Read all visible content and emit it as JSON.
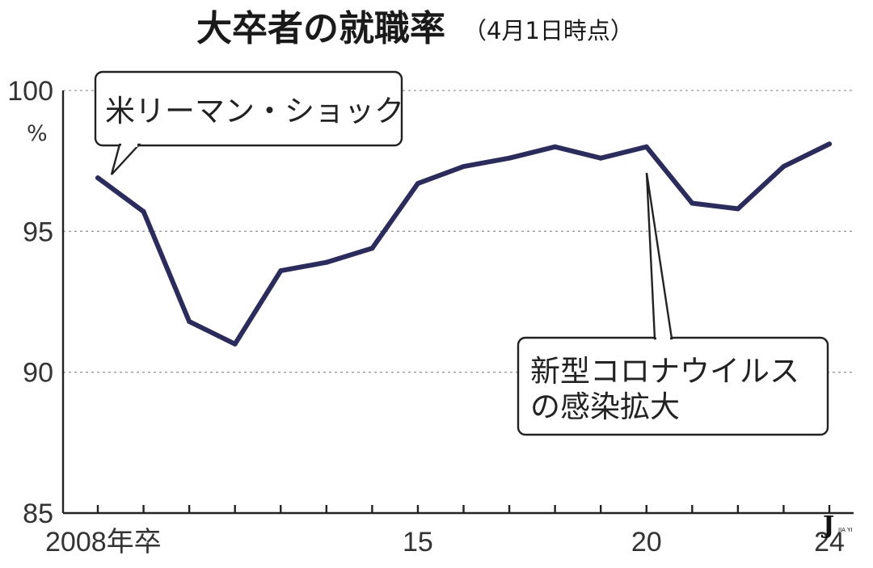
{
  "chart_data": {
    "type": "line",
    "title": "大卒者の就職率",
    "subtitle": "（4月1日時点）",
    "ylabel": "%",
    "x": [
      2008,
      2009,
      2010,
      2011,
      2012,
      2013,
      2014,
      2015,
      2016,
      2017,
      2018,
      2019,
      2020,
      2021,
      2022,
      2023,
      2024
    ],
    "series": [
      {
        "values": [
          96.9,
          95.7,
          91.8,
          91.0,
          93.6,
          93.9,
          94.4,
          96.7,
          97.3,
          97.6,
          98.0,
          97.6,
          98.0,
          96.0,
          95.8,
          97.3,
          98.1
        ]
      }
    ],
    "ylim": [
      85,
      100
    ],
    "xlim": [
      2008,
      2024
    ],
    "yticks": [
      {
        "value": 100,
        "label": "100"
      },
      {
        "value": 95,
        "label": "95"
      },
      {
        "value": 90,
        "label": "90"
      },
      {
        "value": 85,
        "label": "85"
      }
    ],
    "xticks_labeled": [
      {
        "value": 2008,
        "label": "2008年卒"
      },
      {
        "value": 2015,
        "label": "15"
      },
      {
        "value": 2020,
        "label": "20"
      },
      {
        "value": 2024,
        "label": "24"
      }
    ],
    "grid": "horizontal-dotted",
    "line_color": "#2b2b5c",
    "annotations": [
      {
        "x": 2008,
        "lines": [
          "米リーマン・ショック"
        ]
      },
      {
        "x": 2020,
        "lines": [
          "新型コロナウイルス",
          "の感染拡大"
        ]
      }
    ]
  },
  "watermark": {
    "letter": "J",
    "text": "JIA YI"
  }
}
